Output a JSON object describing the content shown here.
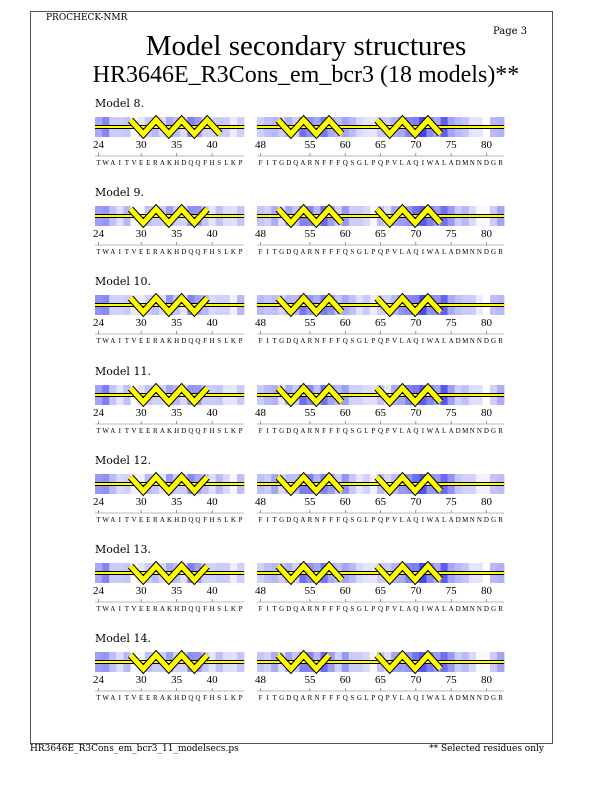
{
  "header": {
    "program": "PROCHECK-NMR",
    "page": "Page  3"
  },
  "title": "Model secondary structures",
  "subtitle": "HR3646E_R3Cons_em_bcr3 (18 models)**",
  "footer": {
    "filename": "HR3646E_R3Cons_em_bcr3_11_modelsecs.ps",
    "note": "** Selected residues only"
  },
  "colors": {
    "shade": "#3c3cf0",
    "helix": "#ffff00",
    "outline": "#000000"
  },
  "segments": [
    {
      "start": 24,
      "sequence": "TWAITVEERAKHDQQFHSLKP",
      "ticks": [
        "24",
        "30",
        "35",
        "40"
      ],
      "shading": [
        0.5,
        0.6,
        0.3,
        0.2,
        0.3,
        0.05,
        0.1,
        0.3,
        0.3,
        0.2,
        0.5,
        0.3,
        0.2,
        0.6,
        0.5,
        0.3,
        0.2,
        0.3,
        0.2,
        0.1,
        0.3
      ]
    },
    {
      "start": 48,
      "sequence": "FITGDQARNFFFQSGLPQPVLAQIWALADMNNDGR",
      "ticks": [
        "48",
        "55",
        "60",
        "65",
        "70",
        "75",
        "80"
      ],
      "shading": [
        0.3,
        0.3,
        0.4,
        0.2,
        0.4,
        0.3,
        0.7,
        0.6,
        0.4,
        0.7,
        0.5,
        0.3,
        0.5,
        0.3,
        0.2,
        0.2,
        0.1,
        0.3,
        0.2,
        0.4,
        0.5,
        0.6,
        0.7,
        0.9,
        0.6,
        0.5,
        0.8,
        0.5,
        0.3,
        0.3,
        0.2,
        0.1,
        0.0,
        0.3,
        0.4
      ]
    }
  ],
  "models": [
    {
      "label": "Model  8.",
      "helices": [
        [
          29,
          42
        ],
        [
          51,
          61
        ],
        [
          65,
          75
        ]
      ]
    },
    {
      "label": "Model  9.",
      "helices": [
        [
          29,
          41
        ],
        [
          51,
          60
        ],
        [
          65,
          75
        ]
      ]
    },
    {
      "label": "Model 10.",
      "helices": [
        [
          29,
          41
        ],
        [
          51,
          60
        ],
        [
          65,
          75
        ]
      ]
    },
    {
      "label": "Model 11.",
      "helices": [
        [
          29,
          41
        ],
        [
          51,
          60
        ],
        [
          65,
          75
        ]
      ]
    },
    {
      "label": "Model 12.",
      "helices": [
        [
          29,
          41
        ],
        [
          51,
          61
        ],
        [
          65,
          75
        ]
      ]
    },
    {
      "label": "Model 13.",
      "helices": [
        [
          29,
          41
        ],
        [
          51,
          60
        ],
        [
          65,
          75
        ]
      ]
    },
    {
      "label": "Model 14.",
      "helices": [
        [
          29,
          40
        ],
        [
          51,
          59
        ],
        [
          65,
          75
        ]
      ]
    }
  ]
}
